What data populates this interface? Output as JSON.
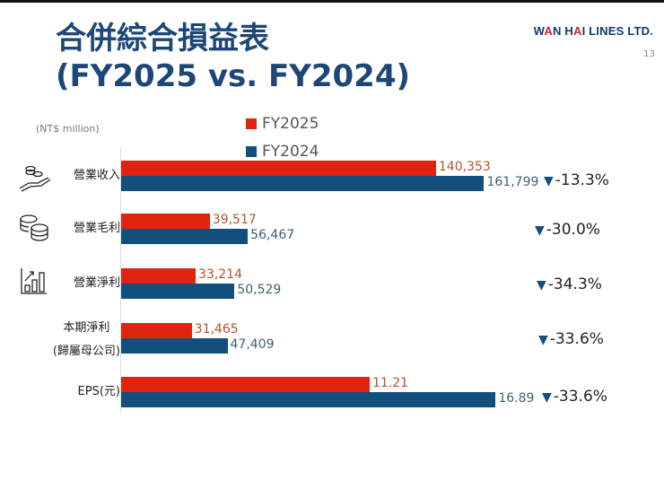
{
  "slide": {
    "title_line1": "合併綜合損益表",
    "title_line2": "(FY2025 vs. FY2024)",
    "logo": {
      "part1": "W",
      "part2": "A",
      "part3": "N H",
      "part4": "A",
      "part5": "I LINES LTD."
    },
    "page_number": "13",
    "unit": "(NT$ million)"
  },
  "chart_data": {
    "type": "bar",
    "orientation": "horizontal",
    "categories": [
      "營業收入",
      "營業毛利",
      "營業淨利",
      "本期淨利(歸屬母公司)",
      "EPS(元)"
    ],
    "category_lines": [
      [
        "營業收入"
      ],
      [
        "營業毛利"
      ],
      [
        "營業淨利"
      ],
      [
        "本期淨利",
        "(歸屬母公司)"
      ],
      [
        "EPS(元)"
      ]
    ],
    "category_icons": [
      "hand-coins-icon",
      "coin-stacks-icon",
      "bar-chart-growth-icon",
      "",
      ""
    ],
    "series": [
      {
        "name": "FY2025",
        "color": "#e0230e",
        "label_color": "#b5522f",
        "values": [
          140353,
          39517,
          33214,
          31465,
          11.21
        ],
        "labels": [
          "140,353",
          "39,517",
          "33,214",
          "31,465",
          "11.21"
        ]
      },
      {
        "name": "FY2024",
        "color": "#124f7c",
        "label_color": "#3e5f73",
        "values": [
          161799,
          56467,
          50529,
          47409,
          16.89
        ],
        "labels": [
          "161,799",
          "56,467",
          "50,529",
          "47,409",
          "16.89"
        ]
      }
    ],
    "changes": [
      "-13.3%",
      "-30.0%",
      "-34.3%",
      "-33.6%",
      "-33.6%"
    ],
    "change_marker_color": "#124f7c",
    "xlim_amounts": [
      0,
      170000
    ],
    "xlim_eps": [
      0,
      17.2
    ],
    "legend_position": "top",
    "grid": false
  }
}
